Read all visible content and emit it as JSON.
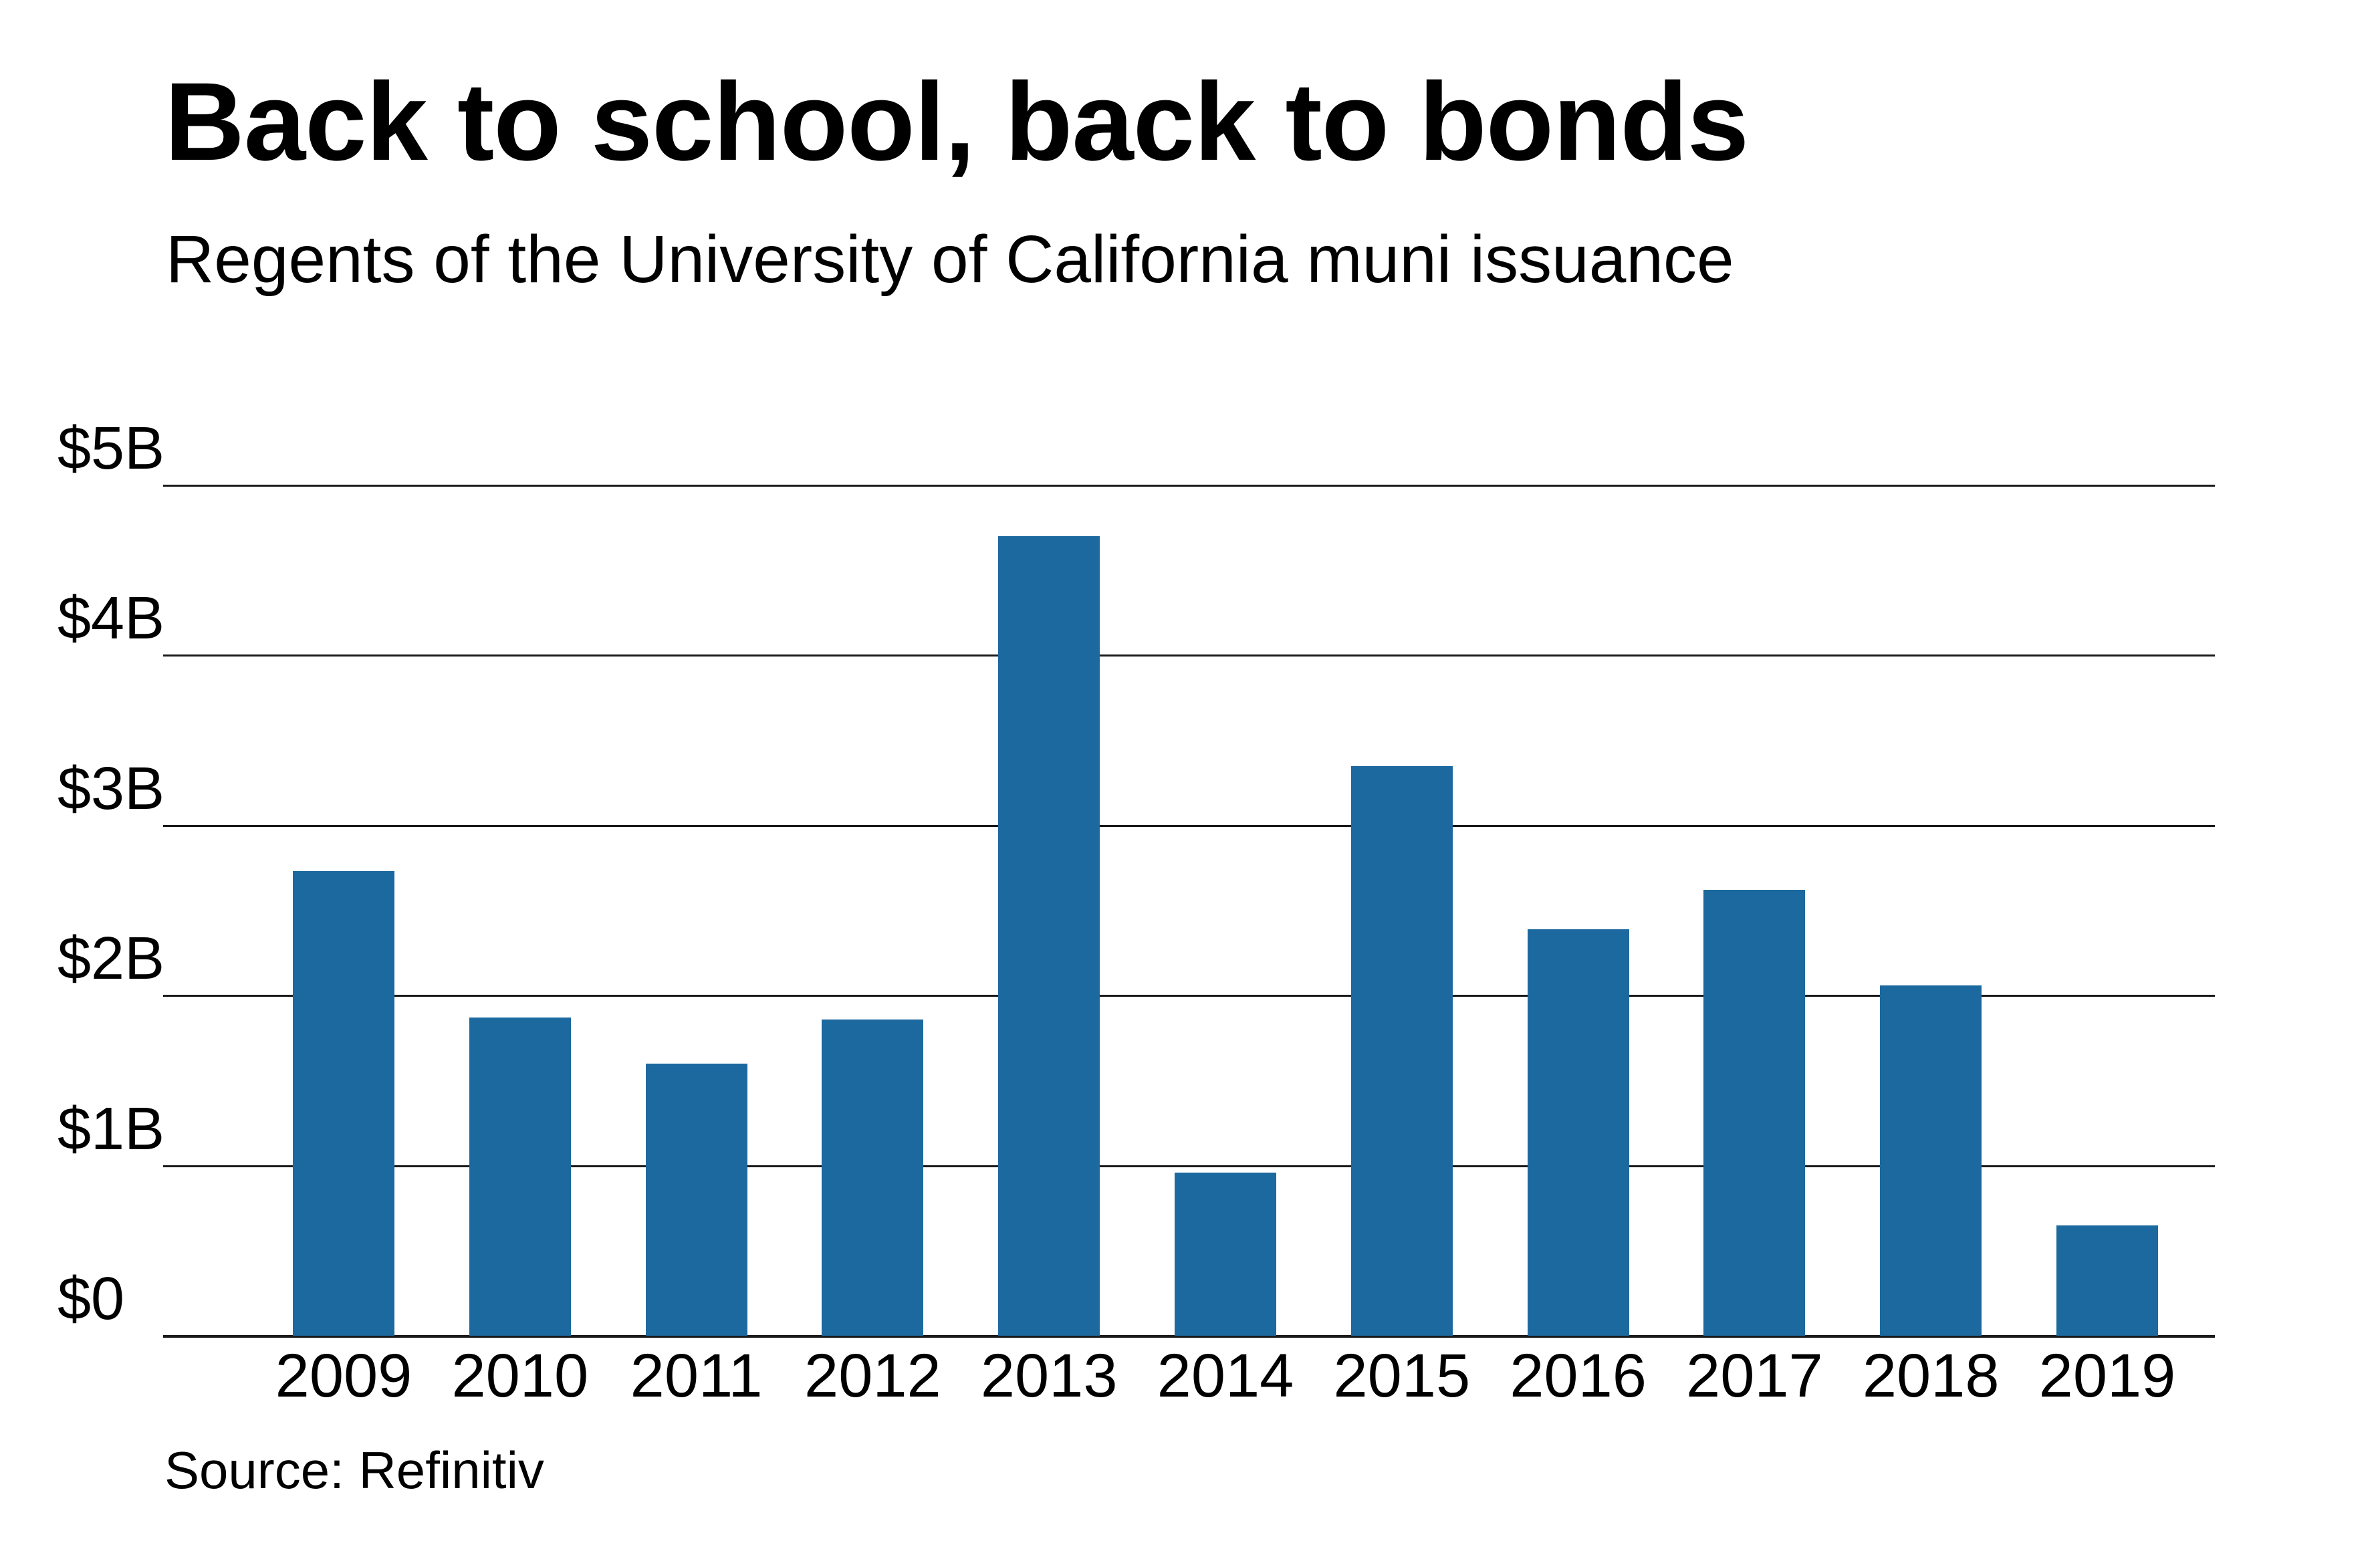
{
  "title": "Back to school, back to bonds",
  "subtitle": "Regents of the University of California muni issuance",
  "source": "Source: Refinitiv",
  "colors": {
    "bar": "#1c699f",
    "gridline": "#1a1a1a",
    "text": "#000000",
    "background": "#ffffff"
  },
  "chart_data": {
    "type": "bar",
    "title": "Back to school, back to bonds",
    "subtitle": "Regents of the University of California muni issuance",
    "xlabel": "",
    "ylabel": "",
    "units": "billions USD",
    "categories": [
      "2009",
      "2010",
      "2011",
      "2012",
      "2013",
      "2014",
      "2015",
      "2016",
      "2017",
      "2018",
      "2019"
    ],
    "values": [
      2.73,
      1.87,
      1.6,
      1.86,
      4.7,
      0.96,
      3.35,
      2.39,
      2.62,
      2.06,
      0.65
    ],
    "ylim": [
      0,
      5
    ],
    "yticks": [
      0,
      1,
      2,
      3,
      4,
      5
    ],
    "ytick_labels": [
      "$0",
      "$1B",
      "$2B",
      "$3B",
      "$4B",
      "$5B"
    ],
    "grid": true,
    "legend": null,
    "source": "Source: Refinitiv"
  }
}
